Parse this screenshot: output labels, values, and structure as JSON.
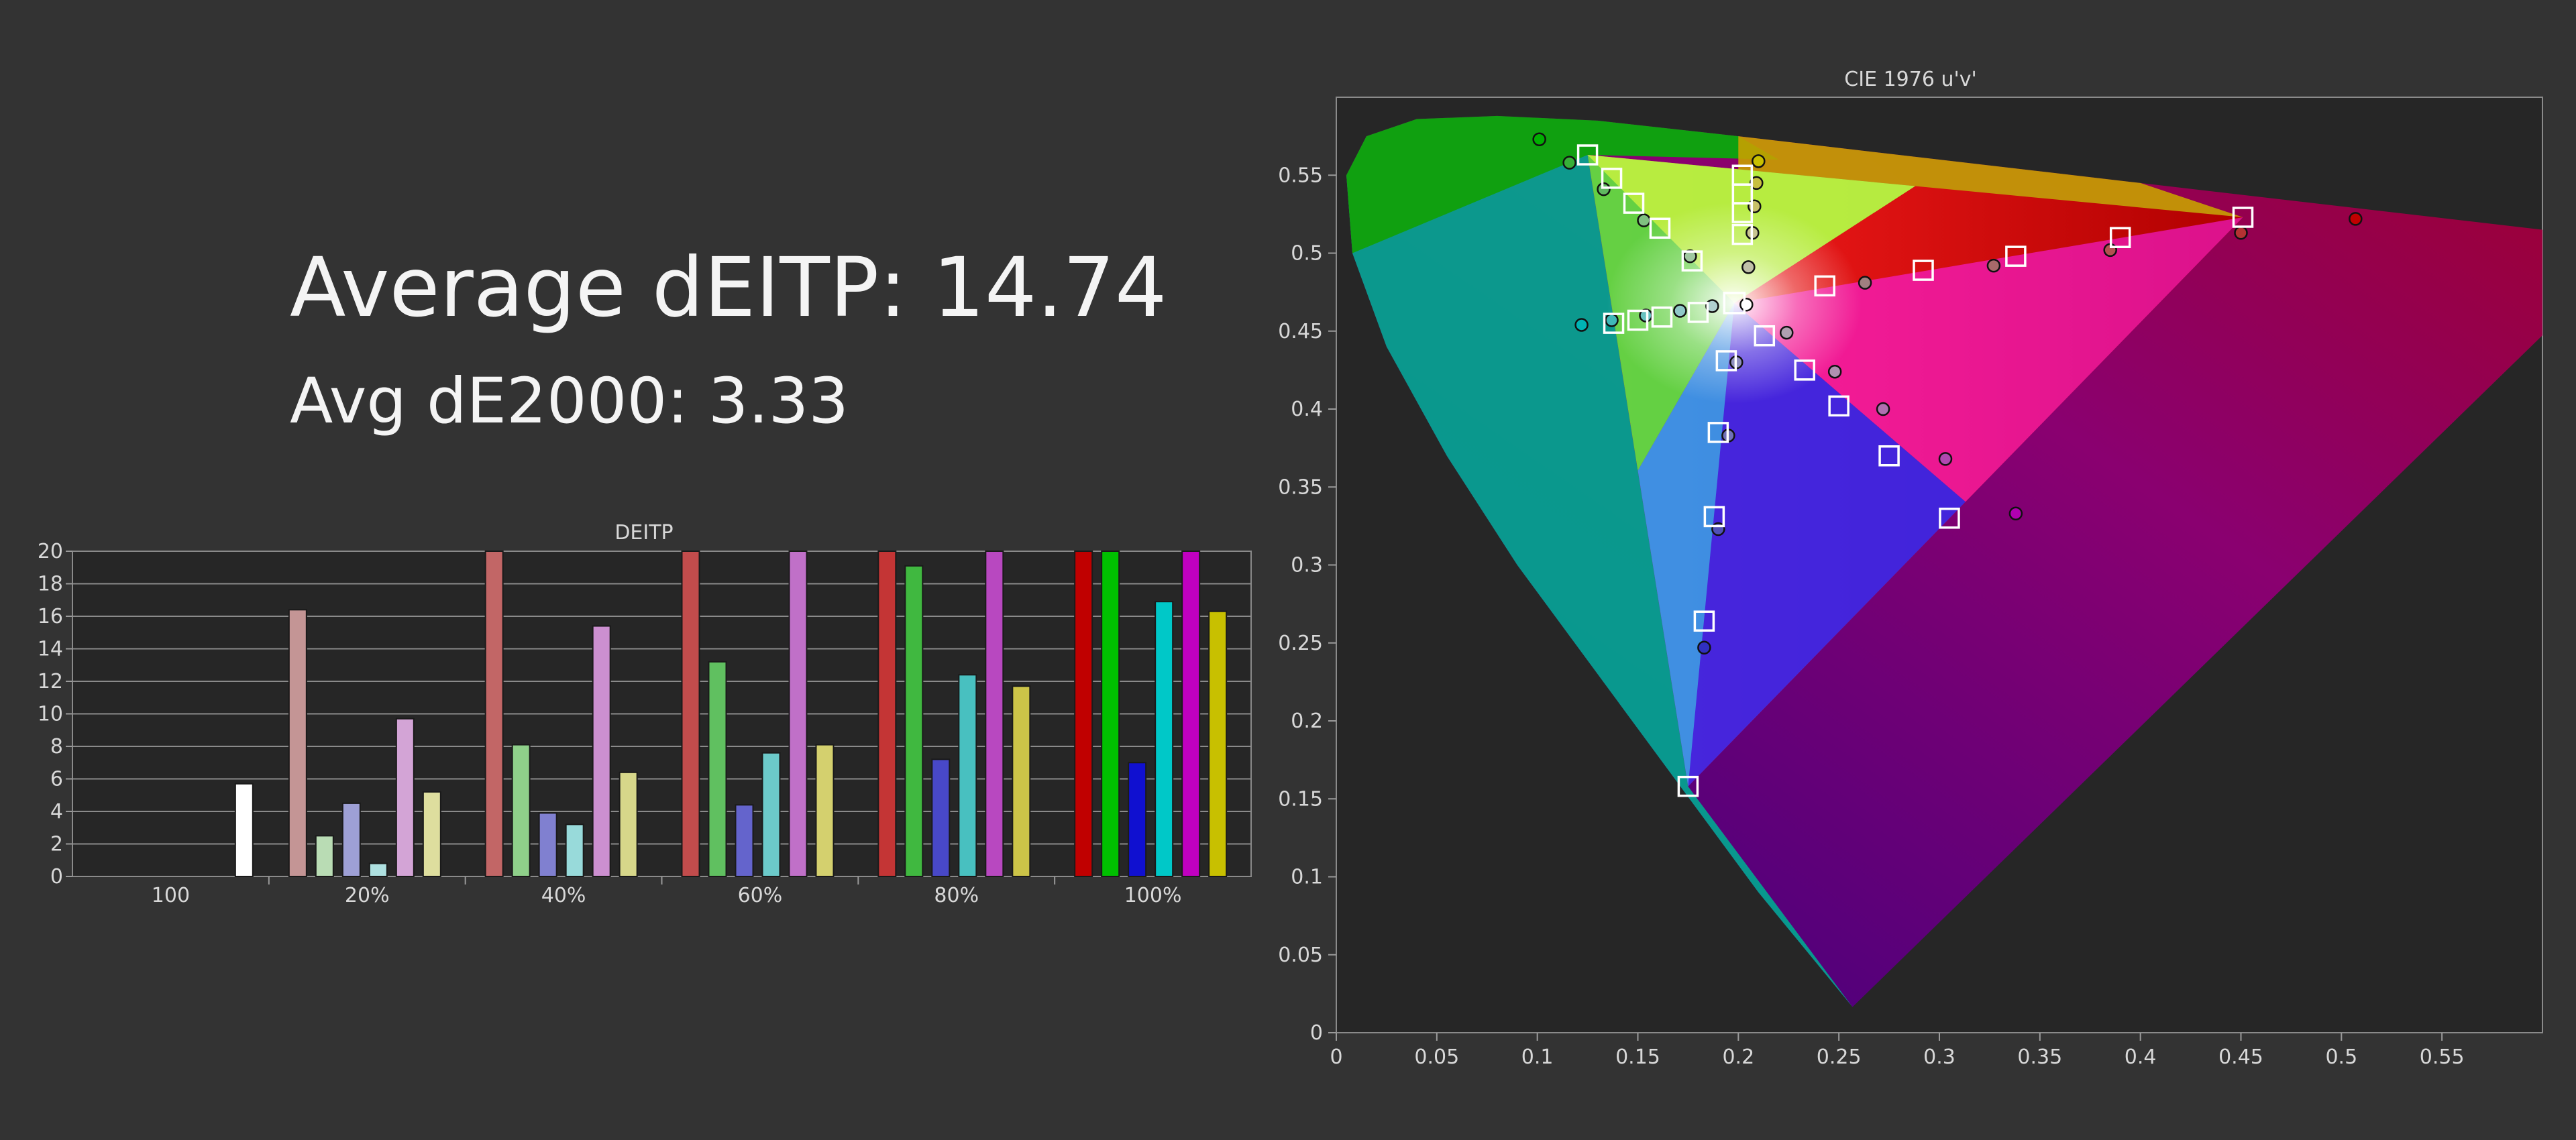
{
  "summary": {
    "avg_deitp": "Average dEITP: 14.74",
    "avg_de2000": "Avg dE2000: 3.33"
  },
  "colors": {
    "background": "#333333",
    "plot_background": "#262626",
    "grid": "#8a8a8a",
    "marker_target": "#ffffff"
  },
  "chart_data": [
    {
      "type": "bar",
      "title": "DEITP",
      "ylim": [
        0,
        20
      ],
      "yticks": [
        "0",
        "2",
        "4",
        "6",
        "8",
        "10",
        "12",
        "14",
        "16",
        "18",
        "20"
      ],
      "grid": true,
      "groups": [
        {
          "label": "100",
          "bars": [
            {
              "value": 5.7,
              "color": "#ffffff"
            }
          ]
        },
        {
          "label": "20%",
          "bars": [
            {
              "value": 16.4,
              "color": "#c49595"
            },
            {
              "value": 2.5,
              "color": "#b9dcb4"
            },
            {
              "value": 4.5,
              "color": "#9ea0d6"
            },
            {
              "value": 0.8,
              "color": "#aee0e0"
            },
            {
              "value": 9.7,
              "color": "#d3a4d6"
            },
            {
              "value": 5.2,
              "color": "#dede9e"
            }
          ]
        },
        {
          "label": "40%",
          "bars": [
            {
              "value": 20,
              "color": "#c26666"
            },
            {
              "value": 8.1,
              "color": "#8fd08a"
            },
            {
              "value": 3.9,
              "color": "#8080d0"
            },
            {
              "value": 3.2,
              "color": "#98dada"
            },
            {
              "value": 15.4,
              "color": "#cc8fd0"
            },
            {
              "value": 6.4,
              "color": "#d7d78a"
            }
          ]
        },
        {
          "label": "60%",
          "bars": [
            {
              "value": 20,
              "color": "#c24c4c"
            },
            {
              "value": 13.2,
              "color": "#60c060"
            },
            {
              "value": 4.4,
              "color": "#6464cc"
            },
            {
              "value": 7.6,
              "color": "#6ccaca"
            },
            {
              "value": 20,
              "color": "#c070c8"
            },
            {
              "value": 8.1,
              "color": "#d4d06e"
            }
          ]
        },
        {
          "label": "80%",
          "bars": [
            {
              "value": 20,
              "color": "#c43535"
            },
            {
              "value": 19.1,
              "color": "#40b840"
            },
            {
              "value": 7.2,
              "color": "#4848c8"
            },
            {
              "value": 12.4,
              "color": "#48c0c0"
            },
            {
              "value": 20,
              "color": "#b848c0"
            },
            {
              "value": 11.7,
              "color": "#ccc448"
            }
          ]
        },
        {
          "label": "100%",
          "bars": [
            {
              "value": 20,
              "color": "#c00000"
            },
            {
              "value": 20,
              "color": "#00c000"
            },
            {
              "value": 7.0,
              "color": "#1010d0"
            },
            {
              "value": 16.9,
              "color": "#00c8c8"
            },
            {
              "value": 20,
              "color": "#c000c0"
            },
            {
              "value": 16.3,
              "color": "#c8c000"
            }
          ]
        }
      ]
    },
    {
      "type": "scatter",
      "title": "CIE 1976 u'v'",
      "xlim": [
        0,
        0.6
      ],
      "ylim": [
        0,
        0.6
      ],
      "xticks": [
        "0",
        "0.05",
        "0.1",
        "0.15",
        "0.2",
        "0.25",
        "0.3",
        "0.35",
        "0.4",
        "0.45",
        "0.5",
        "0.55"
      ],
      "yticks": [
        "0",
        "0.05",
        "0.1",
        "0.15",
        "0.2",
        "0.25",
        "0.3",
        "0.35",
        "0.4",
        "0.45",
        "0.5",
        "0.55"
      ],
      "primaries": {
        "red": [
          0.451,
          0.523
        ],
        "green": [
          0.125,
          0.563
        ],
        "blue": [
          0.175,
          0.158
        ],
        "white": [
          0.198,
          0.468
        ]
      },
      "targets": [
        [
          0.198,
          0.468
        ],
        [
          0.175,
          0.158
        ],
        [
          0.183,
          0.264
        ],
        [
          0.188,
          0.331
        ],
        [
          0.19,
          0.385
        ],
        [
          0.194,
          0.431
        ],
        [
          0.451,
          0.523
        ],
        [
          0.39,
          0.51
        ],
        [
          0.338,
          0.498
        ],
        [
          0.292,
          0.489
        ],
        [
          0.243,
          0.479
        ],
        [
          0.125,
          0.563
        ],
        [
          0.137,
          0.548
        ],
        [
          0.148,
          0.532
        ],
        [
          0.161,
          0.516
        ],
        [
          0.177,
          0.495
        ],
        [
          0.138,
          0.455
        ],
        [
          0.15,
          0.457
        ],
        [
          0.162,
          0.459
        ],
        [
          0.18,
          0.462
        ],
        [
          0.202,
          0.55
        ],
        [
          0.202,
          0.538
        ],
        [
          0.202,
          0.526
        ],
        [
          0.202,
          0.512
        ],
        [
          0.305,
          0.33
        ],
        [
          0.275,
          0.37
        ],
        [
          0.25,
          0.402
        ],
        [
          0.233,
          0.425
        ],
        [
          0.213,
          0.447
        ]
      ],
      "measured": [
        {
          "x": 0.204,
          "y": 0.467,
          "color": "#ffffff"
        },
        {
          "x": 0.507,
          "y": 0.522,
          "color": "#c00000"
        },
        {
          "x": 0.45,
          "y": 0.513,
          "color": "#b43232"
        },
        {
          "x": 0.385,
          "y": 0.502,
          "color": "#b45050"
        },
        {
          "x": 0.327,
          "y": 0.492,
          "color": "#a86a6a"
        },
        {
          "x": 0.263,
          "y": 0.481,
          "color": "#a08080"
        },
        {
          "x": 0.101,
          "y": 0.573,
          "color": "#00b000"
        },
        {
          "x": 0.116,
          "y": 0.558,
          "color": "#38b038"
        },
        {
          "x": 0.133,
          "y": 0.541,
          "color": "#60b860"
        },
        {
          "x": 0.153,
          "y": 0.521,
          "color": "#80c080"
        },
        {
          "x": 0.176,
          "y": 0.498,
          "color": "#a0c8a0"
        },
        {
          "x": 0.122,
          "y": 0.454,
          "color": "#00b4b4"
        },
        {
          "x": 0.137,
          "y": 0.457,
          "color": "#40b8b8"
        },
        {
          "x": 0.154,
          "y": 0.46,
          "color": "#68c0c0"
        },
        {
          "x": 0.171,
          "y": 0.463,
          "color": "#90c8c8"
        },
        {
          "x": 0.187,
          "y": 0.466,
          "color": "#b0d0d0"
        },
        {
          "x": 0.21,
          "y": 0.559,
          "color": "#c8c000"
        },
        {
          "x": 0.209,
          "y": 0.545,
          "color": "#c8c040"
        },
        {
          "x": 0.208,
          "y": 0.53,
          "color": "#c8c068"
        },
        {
          "x": 0.207,
          "y": 0.513,
          "color": "#c8c490"
        },
        {
          "x": 0.205,
          "y": 0.491,
          "color": "#c0c0a8"
        },
        {
          "x": 0.183,
          "y": 0.247,
          "color": "#3030c0"
        },
        {
          "x": 0.19,
          "y": 0.323,
          "color": "#5050b8"
        },
        {
          "x": 0.195,
          "y": 0.383,
          "color": "#7070b8"
        },
        {
          "x": 0.199,
          "y": 0.43,
          "color": "#9090c0"
        },
        {
          "x": 0.338,
          "y": 0.333,
          "color": "#b000b0"
        },
        {
          "x": 0.303,
          "y": 0.368,
          "color": "#b048b0"
        },
        {
          "x": 0.272,
          "y": 0.4,
          "color": "#b070b0"
        },
        {
          "x": 0.248,
          "y": 0.424,
          "color": "#b090b0"
        },
        {
          "x": 0.224,
          "y": 0.449,
          "color": "#b0a0b0"
        }
      ]
    }
  ]
}
